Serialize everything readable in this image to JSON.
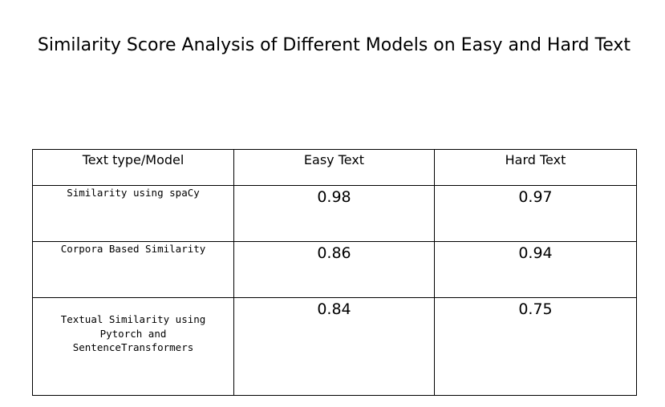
{
  "title": "Similarity Score Analysis of Different Models on Easy and Hard Text",
  "table": {
    "headers": [
      "Text type/Model",
      "Easy Text",
      "Hard Text"
    ],
    "rows": [
      {
        "model": "Similarity using spaCy",
        "easy": "0.98",
        "hard": "0.97"
      },
      {
        "model": "Corpora Based Similarity",
        "easy": "0.86",
        "hard": "0.94"
      },
      {
        "model_lines": [
          "Textual Similarity using",
          "Pytorch and",
          "SentenceTransformers"
        ],
        "easy": "0.84",
        "hard": "0.75"
      }
    ]
  }
}
